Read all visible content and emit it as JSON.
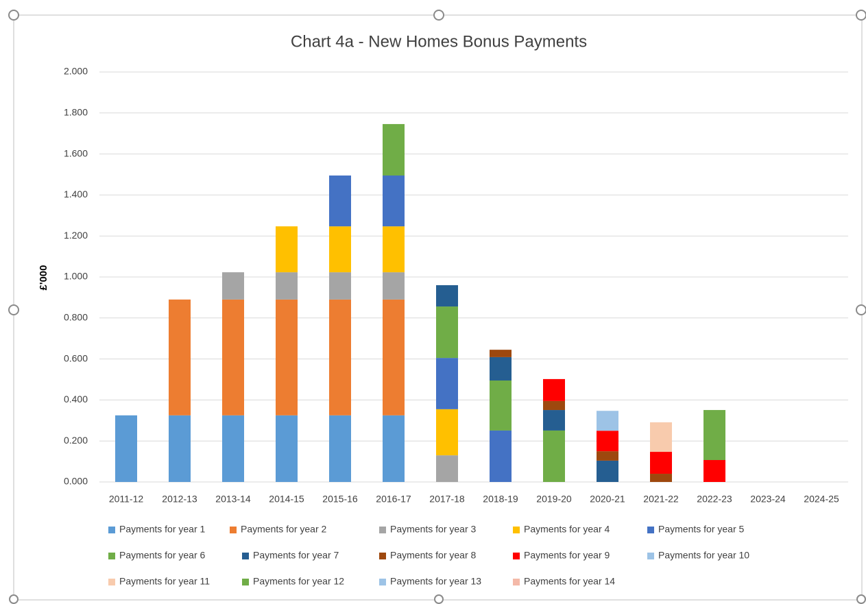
{
  "chart_data": {
    "type": "stacked_bar",
    "title": "Chart 4a - New Homes Bonus Payments",
    "y_label": "£'000",
    "categories": [
      "2011-12",
      "2012-13",
      "2013-14",
      "2014-15",
      "2015-16",
      "2016-17",
      "2017-18",
      "2018-19",
      "2019-20",
      "2020-21",
      "2021-22",
      "2022-23",
      "2023-24",
      "2024-25"
    ],
    "ylim": [
      0,
      2
    ],
    "yticks": [
      {
        "value": 0,
        "label": "0.000"
      },
      {
        "value": 0.2,
        "label": "0.200"
      },
      {
        "value": 0.4,
        "label": "0.400"
      },
      {
        "value": 0.6,
        "label": "0.600"
      },
      {
        "value": 0.8,
        "label": "0.800"
      },
      {
        "value": 1,
        "label": "1.000"
      },
      {
        "value": 1.2,
        "label": "1.200"
      },
      {
        "value": 1.4,
        "label": "1.400"
      },
      {
        "value": 1.6,
        "label": "1.600"
      },
      {
        "value": 1.8,
        "label": "1.800"
      },
      {
        "value": 2,
        "label": "2.000"
      }
    ],
    "grid": true,
    "legend": "bottom",
    "series": [
      {
        "name": "Payments for year 1",
        "color": "#5b9bd5",
        "values": [
          0.325,
          0.325,
          0.325,
          0.325,
          0.325,
          0.325,
          0,
          0,
          0,
          0,
          0,
          0,
          0,
          0
        ]
      },
      {
        "name": "Payments for year 2",
        "color": "#ed7d31",
        "values": [
          0,
          0.565,
          0.565,
          0.565,
          0.565,
          0.565,
          0,
          0,
          0,
          0,
          0,
          0,
          0,
          0
        ]
      },
      {
        "name": "Payments for year 3",
        "color": "#a5a5a5",
        "values": [
          0,
          0,
          0.133,
          0.133,
          0.133,
          0.133,
          0.13,
          0,
          0,
          0,
          0,
          0,
          0,
          0
        ]
      },
      {
        "name": "Payments for year 4",
        "color": "#ffc000",
        "values": [
          0,
          0,
          0,
          0.224,
          0.224,
          0.224,
          0.225,
          0,
          0,
          0,
          0,
          0,
          0,
          0
        ]
      },
      {
        "name": "Payments for year 5",
        "color": "#4472c4",
        "values": [
          0,
          0,
          0,
          0,
          0.248,
          0.248,
          0.25,
          0.251,
          0,
          0,
          0,
          0,
          0,
          0
        ]
      },
      {
        "name": "Payments for year 6",
        "color": "#70ad47",
        "values": [
          0,
          0,
          0,
          0,
          0,
          0.251,
          0.251,
          0.244,
          0.251,
          0,
          0,
          0,
          0,
          0
        ]
      },
      {
        "name": "Payments for year 7",
        "color": "#255e91",
        "values": [
          0,
          0,
          0,
          0,
          0,
          0,
          0.104,
          0.114,
          0.1,
          0.104,
          0,
          0,
          0,
          0
        ]
      },
      {
        "name": "Payments for year 8",
        "color": "#9e480e",
        "values": [
          0,
          0,
          0,
          0,
          0,
          0,
          0,
          0.036,
          0.044,
          0.046,
          0.04,
          0,
          0,
          0
        ]
      },
      {
        "name": "Payments for year 9",
        "color": "#ff0000",
        "values": [
          0,
          0,
          0,
          0,
          0,
          0,
          0,
          0,
          0.107,
          0.1,
          0.107,
          0.107,
          0,
          0
        ]
      },
      {
        "name": "Payments for year 10",
        "color": "#9dc3e6",
        "values": [
          0,
          0,
          0,
          0,
          0,
          0,
          0,
          0,
          0,
          0.097,
          0,
          0,
          0,
          0
        ]
      },
      {
        "name": "Payments for year 11",
        "color": "#f8cbad",
        "values": [
          0,
          0,
          0,
          0,
          0,
          0,
          0,
          0,
          0,
          0,
          0.144,
          0,
          0,
          0
        ]
      },
      {
        "name": "Payments for year 12",
        "color": "#70ad47",
        "values": [
          0,
          0,
          0,
          0,
          0,
          0,
          0,
          0,
          0,
          0,
          0,
          0.244,
          0,
          0
        ]
      },
      {
        "name": "Payments for year 13",
        "color": "#9dc3e6",
        "values": [
          0,
          0,
          0,
          0,
          0,
          0,
          0,
          0,
          0,
          0,
          0,
          0,
          0,
          0
        ]
      },
      {
        "name": "Payments for year 14",
        "color": "#f4b9a8",
        "values": [
          0,
          0,
          0,
          0,
          0,
          0,
          0,
          0,
          0,
          0,
          0,
          0,
          0,
          0
        ]
      }
    ]
  }
}
